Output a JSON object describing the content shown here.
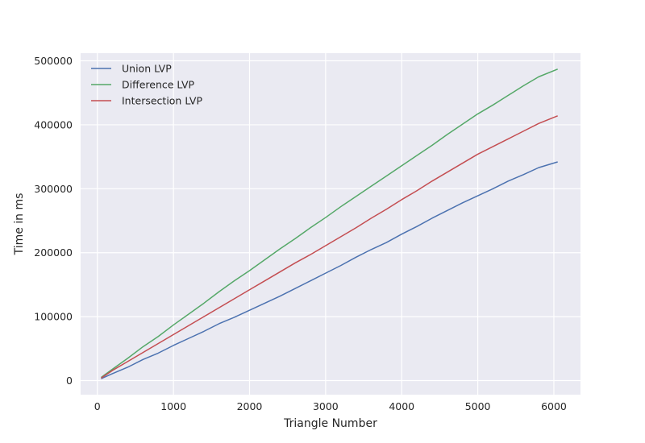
{
  "chart_data": {
    "type": "line",
    "title": "",
    "xlabel": "Triangle Number",
    "ylabel": "Time in ms",
    "xlim": [
      -220,
      6350
    ],
    "ylim": [
      -22000,
      512000
    ],
    "xticks": [
      0,
      1000,
      2000,
      3000,
      4000,
      5000,
      6000
    ],
    "xtick_labels": [
      "0",
      "1000",
      "2000",
      "3000",
      "4000",
      "5000",
      "6000"
    ],
    "yticks": [
      0,
      100000,
      200000,
      300000,
      400000,
      500000
    ],
    "ytick_labels": [
      "0",
      "100000",
      "200000",
      "300000",
      "400000",
      "500000"
    ],
    "grid": true,
    "legend_position": "top-left",
    "x": [
      50,
      200,
      400,
      600,
      800,
      1000,
      1200,
      1400,
      1600,
      1800,
      2000,
      2200,
      2400,
      2600,
      2800,
      3000,
      3200,
      3400,
      3600,
      3800,
      4000,
      4200,
      4400,
      4600,
      4800,
      5000,
      5200,
      5400,
      5600,
      5800,
      6050
    ],
    "series": [
      {
        "name": "Union LVP",
        "color": "#4c72b0",
        "values": [
          3000,
          11000,
          21000,
          33000,
          43000,
          55000,
          66000,
          77000,
          89000,
          99000,
          110000,
          121000,
          132000,
          144000,
          156000,
          168000,
          180000,
          193000,
          205000,
          216000,
          229000,
          241000,
          254000,
          266000,
          278000,
          289000,
          300000,
          312000,
          322000,
          333000,
          342000
        ]
      },
      {
        "name": "Difference LVP",
        "color": "#55a868",
        "values": [
          5000,
          18000,
          35000,
          53000,
          69000,
          87000,
          104000,
          121000,
          139000,
          156000,
          172000,
          189000,
          206000,
          222000,
          239000,
          255000,
          272000,
          288000,
          304000,
          320000,
          336000,
          352000,
          368000,
          385000,
          401000,
          417000,
          431000,
          446000,
          461000,
          475000,
          487000
        ]
      },
      {
        "name": "Intersection LVP",
        "color": "#c44e52",
        "values": [
          4000,
          16000,
          30000,
          44000,
          58000,
          72000,
          86000,
          100000,
          114000,
          128000,
          142000,
          156000,
          170000,
          184000,
          197000,
          211000,
          225000,
          239000,
          254000,
          268000,
          283000,
          297000,
          312000,
          326000,
          340000,
          354000,
          366000,
          378000,
          390000,
          402000,
          414000
        ]
      }
    ]
  }
}
